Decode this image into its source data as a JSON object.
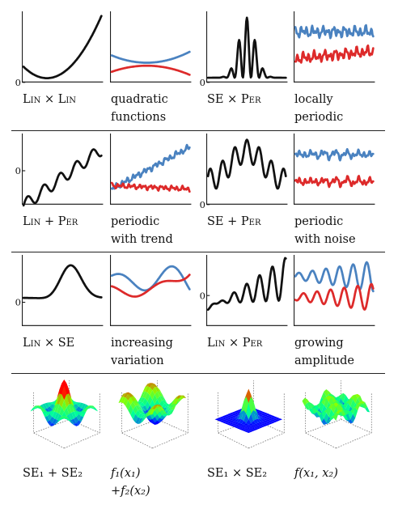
{
  "axis_zero_label": "0",
  "rows": [
    {
      "cells": [
        {
          "label": "Lin × Lin",
          "lines": [
            "Lin × Lin"
          ],
          "smallcaps": true
        },
        {
          "label": "quadratic functions",
          "lines": [
            "quadratic",
            "functions"
          ],
          "smallcaps": false
        },
        {
          "label": "SE × Per",
          "lines": [
            "SE × Per"
          ],
          "smallcaps": true
        },
        {
          "label": "locally periodic",
          "lines": [
            "locally",
            "periodic"
          ],
          "smallcaps": false
        }
      ]
    },
    {
      "cells": [
        {
          "label": "Lin + Per",
          "lines": [
            "Lin + Per"
          ],
          "smallcaps": true
        },
        {
          "label": "periodic with trend",
          "lines": [
            "periodic",
            "with trend"
          ],
          "smallcaps": false
        },
        {
          "label": "SE + Per",
          "lines": [
            "SE + Per"
          ],
          "smallcaps": true
        },
        {
          "label": "periodic with noise",
          "lines": [
            "periodic",
            "with noise"
          ],
          "smallcaps": false
        }
      ]
    },
    {
      "cells": [
        {
          "label": "Lin × SE",
          "lines": [
            "Lin × SE"
          ],
          "smallcaps": true
        },
        {
          "label": "increasing variation",
          "lines": [
            "increasing",
            "variation"
          ],
          "smallcaps": false
        },
        {
          "label": "Lin × Per",
          "lines": [
            "Lin × Per"
          ],
          "smallcaps": true
        },
        {
          "label": "growing amplitude",
          "lines": [
            "growing",
            "amplitude"
          ],
          "smallcaps": false
        }
      ]
    },
    {
      "cells": [
        {
          "label": "SE1 + SE2",
          "lines": [
            "SE₁ + SE₂"
          ],
          "smallcaps": false
        },
        {
          "label": "f1(x1) +f2(x2)",
          "lines": [
            "f₁(x₁)",
            "+f₂(x₂)"
          ],
          "smallcaps": false,
          "italic": true
        },
        {
          "label": "SE1 × SE2",
          "lines": [
            "SE₁ × SE₂"
          ],
          "smallcaps": false
        },
        {
          "label": "f(x1, x2)",
          "lines": [
            "f(x₁, x₂)"
          ],
          "smallcaps": false,
          "italic": true
        }
      ]
    }
  ],
  "colors": {
    "kernel_curve": "#111111",
    "sample_blue": "#4a82c0",
    "sample_red": "#dd2a2a"
  }
}
